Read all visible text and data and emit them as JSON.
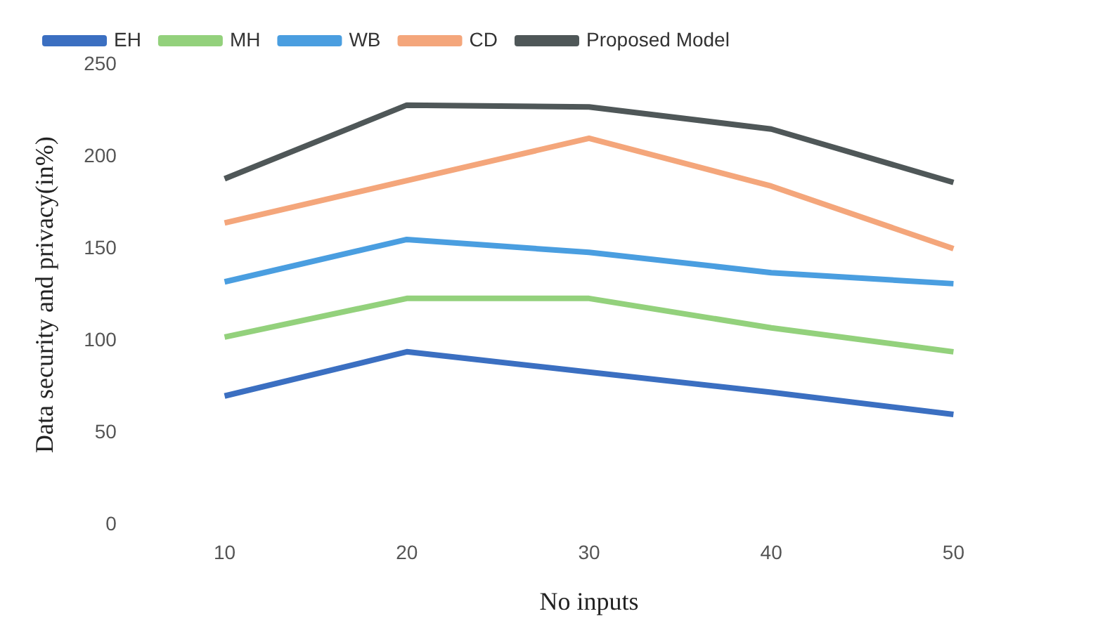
{
  "chart_data": {
    "type": "line",
    "xlabel": "No inputs",
    "ylabel": "Data security and privacy(in%)",
    "categories": [
      "10",
      "20",
      "30",
      "40",
      "50"
    ],
    "series": [
      {
        "name": "EH",
        "color": "#3b6fc1",
        "values": [
          70,
          94,
          83,
          72,
          60
        ]
      },
      {
        "name": "MH",
        "color": "#93d17c",
        "values": [
          102,
          123,
          123,
          107,
          94
        ]
      },
      {
        "name": "WB",
        "color": "#4a9ee0",
        "values": [
          132,
          155,
          148,
          137,
          131
        ]
      },
      {
        "name": "CD",
        "color": "#f4a67b",
        "values": [
          164,
          187,
          210,
          184,
          150
        ]
      },
      {
        "name": "Proposed Model",
        "color": "#4f5758",
        "values": [
          188,
          228,
          227,
          215,
          186
        ]
      }
    ],
    "ylim": [
      0,
      250
    ],
    "yticks": [
      0,
      50,
      100,
      150,
      200,
      250
    ],
    "grid": false,
    "legend": "top",
    "marker": "none",
    "line_style": "solid"
  }
}
